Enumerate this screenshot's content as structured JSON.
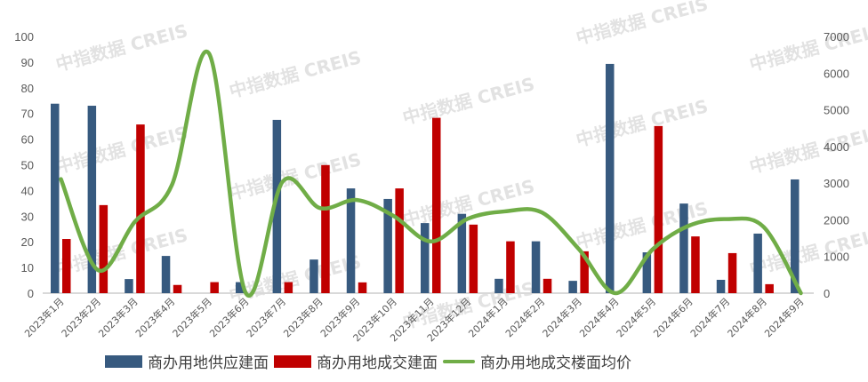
{
  "chart_data": {
    "type": "bar",
    "title": "",
    "categories": [
      "2023年1月",
      "2023年2月",
      "2023年3月",
      "2023年4月",
      "2023年5月",
      "2023年6月",
      "2023年7月",
      "2023年8月",
      "2023年9月",
      "2023年10月",
      "2023年11月",
      "2023年12月",
      "2024年1月",
      "2024年2月",
      "2024年3月",
      "2024年4月",
      "2024年5月",
      "2024年6月",
      "2024年7月",
      "2024年8月",
      "2024年9月"
    ],
    "series": [
      {
        "name": "商办用地供应建面",
        "type": "bar",
        "axis": "left",
        "color": "#375A7F",
        "values": [
          73.8,
          73.0,
          5.5,
          14.5,
          0,
          4.3,
          67.5,
          13.1,
          40.8,
          36.7,
          27.3,
          30.9,
          5.6,
          20.2,
          4.8,
          89.3,
          15.9,
          34.9,
          5.2,
          23.2,
          44.3
        ]
      },
      {
        "name": "商办用地成交建面",
        "type": "bar",
        "axis": "left",
        "color": "#C00000",
        "values": [
          21.1,
          34.3,
          65.7,
          3.2,
          4.3,
          0,
          4.3,
          49.9,
          4.2,
          40.8,
          68.3,
          26.7,
          20.2,
          5.6,
          16.3,
          0,
          65.1,
          22.1,
          15.6,
          3.5,
          0
        ]
      },
      {
        "name": "商办用地成交楼面均价",
        "type": "line",
        "axis": "right",
        "color": "#70AD47",
        "values": [
          3110,
          630,
          1950,
          2950,
          6540,
          0,
          3050,
          2320,
          2540,
          2100,
          1410,
          2030,
          2230,
          2200,
          1200,
          0,
          1200,
          1850,
          2020,
          1800,
          0
        ]
      }
    ],
    "xlabel": "",
    "ylabel": "",
    "ylim": [
      0,
      100
    ],
    "y2lim": [
      0,
      7000
    ],
    "yticks": [
      "0",
      "10",
      "20",
      "30",
      "40",
      "50",
      "60",
      "70",
      "80",
      "90",
      "100"
    ],
    "y2ticks": [
      "0",
      "1000",
      "2000",
      "3000",
      "4000",
      "5000",
      "6000",
      "7000"
    ],
    "grid": false,
    "legend_position": "bottom"
  },
  "watermark": "中指数据 CREIS",
  "legend": [
    {
      "label": "商办用地供应建面",
      "color": "#375A7F",
      "kind": "bar"
    },
    {
      "label": "商办用地成交建面",
      "color": "#C00000",
      "kind": "bar"
    },
    {
      "label": "商办用地成交楼面均价",
      "color": "#70AD47",
      "kind": "line"
    }
  ]
}
